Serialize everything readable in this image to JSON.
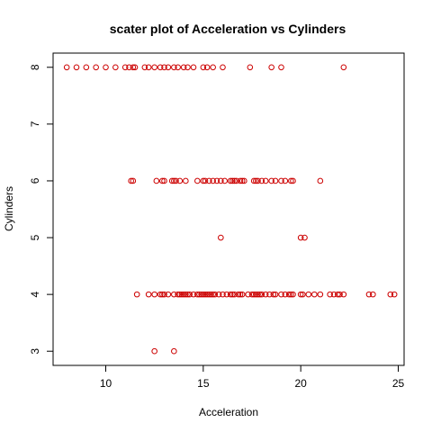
{
  "chart_data": {
    "type": "scatter",
    "title": "scater plot of Acceleration vs Cylinders",
    "xlabel": "Acceleration",
    "ylabel": "Cylinders",
    "xlim": [
      7.3,
      25.3
    ],
    "ylim": [
      2.75,
      8.25
    ],
    "xticks": [
      10,
      15,
      20,
      25
    ],
    "yticks": [
      3,
      4,
      5,
      6,
      7,
      8
    ],
    "point_color": "#cc0000",
    "grid": false,
    "legend": "none",
    "points": [
      {
        "x": 8.0,
        "y": 8
      },
      {
        "x": 8.5,
        "y": 8
      },
      {
        "x": 9.0,
        "y": 8
      },
      {
        "x": 9.5,
        "y": 8
      },
      {
        "x": 10.0,
        "y": 8
      },
      {
        "x": 10.5,
        "y": 8
      },
      {
        "x": 11.0,
        "y": 8
      },
      {
        "x": 11.2,
        "y": 8
      },
      {
        "x": 11.4,
        "y": 8
      },
      {
        "x": 11.5,
        "y": 8
      },
      {
        "x": 12.0,
        "y": 8
      },
      {
        "x": 12.2,
        "y": 8
      },
      {
        "x": 12.5,
        "y": 8
      },
      {
        "x": 12.8,
        "y": 8
      },
      {
        "x": 13.0,
        "y": 8
      },
      {
        "x": 13.2,
        "y": 8
      },
      {
        "x": 13.5,
        "y": 8
      },
      {
        "x": 13.7,
        "y": 8
      },
      {
        "x": 14.0,
        "y": 8
      },
      {
        "x": 14.2,
        "y": 8
      },
      {
        "x": 14.5,
        "y": 8
      },
      {
        "x": 15.0,
        "y": 8
      },
      {
        "x": 15.2,
        "y": 8
      },
      {
        "x": 15.5,
        "y": 8
      },
      {
        "x": 16.0,
        "y": 8
      },
      {
        "x": 17.4,
        "y": 8
      },
      {
        "x": 18.5,
        "y": 8
      },
      {
        "x": 19.0,
        "y": 8
      },
      {
        "x": 22.2,
        "y": 8
      },
      {
        "x": 11.3,
        "y": 6
      },
      {
        "x": 11.4,
        "y": 6
      },
      {
        "x": 12.6,
        "y": 6
      },
      {
        "x": 12.9,
        "y": 6
      },
      {
        "x": 13.0,
        "y": 6
      },
      {
        "x": 13.4,
        "y": 6
      },
      {
        "x": 13.5,
        "y": 6
      },
      {
        "x": 13.6,
        "y": 6
      },
      {
        "x": 13.8,
        "y": 6
      },
      {
        "x": 14.1,
        "y": 6
      },
      {
        "x": 14.7,
        "y": 6
      },
      {
        "x": 15.0,
        "y": 6
      },
      {
        "x": 15.1,
        "y": 6
      },
      {
        "x": 15.3,
        "y": 6
      },
      {
        "x": 15.5,
        "y": 6
      },
      {
        "x": 15.7,
        "y": 6
      },
      {
        "x": 15.9,
        "y": 6
      },
      {
        "x": 16.1,
        "y": 6
      },
      {
        "x": 16.4,
        "y": 6
      },
      {
        "x": 16.5,
        "y": 6
      },
      {
        "x": 16.6,
        "y": 6
      },
      {
        "x": 16.7,
        "y": 6
      },
      {
        "x": 16.9,
        "y": 6
      },
      {
        "x": 17.0,
        "y": 6
      },
      {
        "x": 17.1,
        "y": 6
      },
      {
        "x": 17.6,
        "y": 6
      },
      {
        "x": 17.7,
        "y": 6
      },
      {
        "x": 17.8,
        "y": 6
      },
      {
        "x": 18.0,
        "y": 6
      },
      {
        "x": 18.2,
        "y": 6
      },
      {
        "x": 18.5,
        "y": 6
      },
      {
        "x": 18.7,
        "y": 6
      },
      {
        "x": 19.0,
        "y": 6
      },
      {
        "x": 19.2,
        "y": 6
      },
      {
        "x": 19.5,
        "y": 6
      },
      {
        "x": 19.6,
        "y": 6
      },
      {
        "x": 21.0,
        "y": 6
      },
      {
        "x": 15.9,
        "y": 5
      },
      {
        "x": 20.0,
        "y": 5
      },
      {
        "x": 20.2,
        "y": 5
      },
      {
        "x": 11.6,
        "y": 4
      },
      {
        "x": 12.2,
        "y": 4
      },
      {
        "x": 12.5,
        "y": 4
      },
      {
        "x": 12.8,
        "y": 4
      },
      {
        "x": 12.9,
        "y": 4
      },
      {
        "x": 13.0,
        "y": 4
      },
      {
        "x": 13.2,
        "y": 4
      },
      {
        "x": 13.5,
        "y": 4
      },
      {
        "x": 13.7,
        "y": 4
      },
      {
        "x": 13.8,
        "y": 4
      },
      {
        "x": 13.9,
        "y": 4
      },
      {
        "x": 14.0,
        "y": 4
      },
      {
        "x": 14.1,
        "y": 4
      },
      {
        "x": 14.2,
        "y": 4
      },
      {
        "x": 14.3,
        "y": 4
      },
      {
        "x": 14.5,
        "y": 4
      },
      {
        "x": 14.7,
        "y": 4
      },
      {
        "x": 14.8,
        "y": 4
      },
      {
        "x": 14.9,
        "y": 4
      },
      {
        "x": 15.0,
        "y": 4
      },
      {
        "x": 15.1,
        "y": 4
      },
      {
        "x": 15.2,
        "y": 4
      },
      {
        "x": 15.3,
        "y": 4
      },
      {
        "x": 15.4,
        "y": 4
      },
      {
        "x": 15.5,
        "y": 4
      },
      {
        "x": 15.6,
        "y": 4
      },
      {
        "x": 15.8,
        "y": 4
      },
      {
        "x": 16.0,
        "y": 4
      },
      {
        "x": 16.2,
        "y": 4
      },
      {
        "x": 16.4,
        "y": 4
      },
      {
        "x": 16.5,
        "y": 4
      },
      {
        "x": 16.6,
        "y": 4
      },
      {
        "x": 16.8,
        "y": 4
      },
      {
        "x": 16.9,
        "y": 4
      },
      {
        "x": 17.0,
        "y": 4
      },
      {
        "x": 17.3,
        "y": 4
      },
      {
        "x": 17.5,
        "y": 4
      },
      {
        "x": 17.6,
        "y": 4
      },
      {
        "x": 17.7,
        "y": 4
      },
      {
        "x": 17.8,
        "y": 4
      },
      {
        "x": 17.9,
        "y": 4
      },
      {
        "x": 18.0,
        "y": 4
      },
      {
        "x": 18.2,
        "y": 4
      },
      {
        "x": 18.4,
        "y": 4
      },
      {
        "x": 18.6,
        "y": 4
      },
      {
        "x": 18.7,
        "y": 4
      },
      {
        "x": 19.0,
        "y": 4
      },
      {
        "x": 19.2,
        "y": 4
      },
      {
        "x": 19.4,
        "y": 4
      },
      {
        "x": 19.5,
        "y": 4
      },
      {
        "x": 19.6,
        "y": 4
      },
      {
        "x": 20.0,
        "y": 4
      },
      {
        "x": 20.1,
        "y": 4
      },
      {
        "x": 20.4,
        "y": 4
      },
      {
        "x": 20.7,
        "y": 4
      },
      {
        "x": 21.0,
        "y": 4
      },
      {
        "x": 21.5,
        "y": 4
      },
      {
        "x": 21.7,
        "y": 4
      },
      {
        "x": 21.9,
        "y": 4
      },
      {
        "x": 22.0,
        "y": 4
      },
      {
        "x": 22.2,
        "y": 4
      },
      {
        "x": 23.5,
        "y": 4
      },
      {
        "x": 23.7,
        "y": 4
      },
      {
        "x": 24.6,
        "y": 4
      },
      {
        "x": 24.8,
        "y": 4
      },
      {
        "x": 12.5,
        "y": 3
      },
      {
        "x": 13.5,
        "y": 3
      }
    ]
  }
}
